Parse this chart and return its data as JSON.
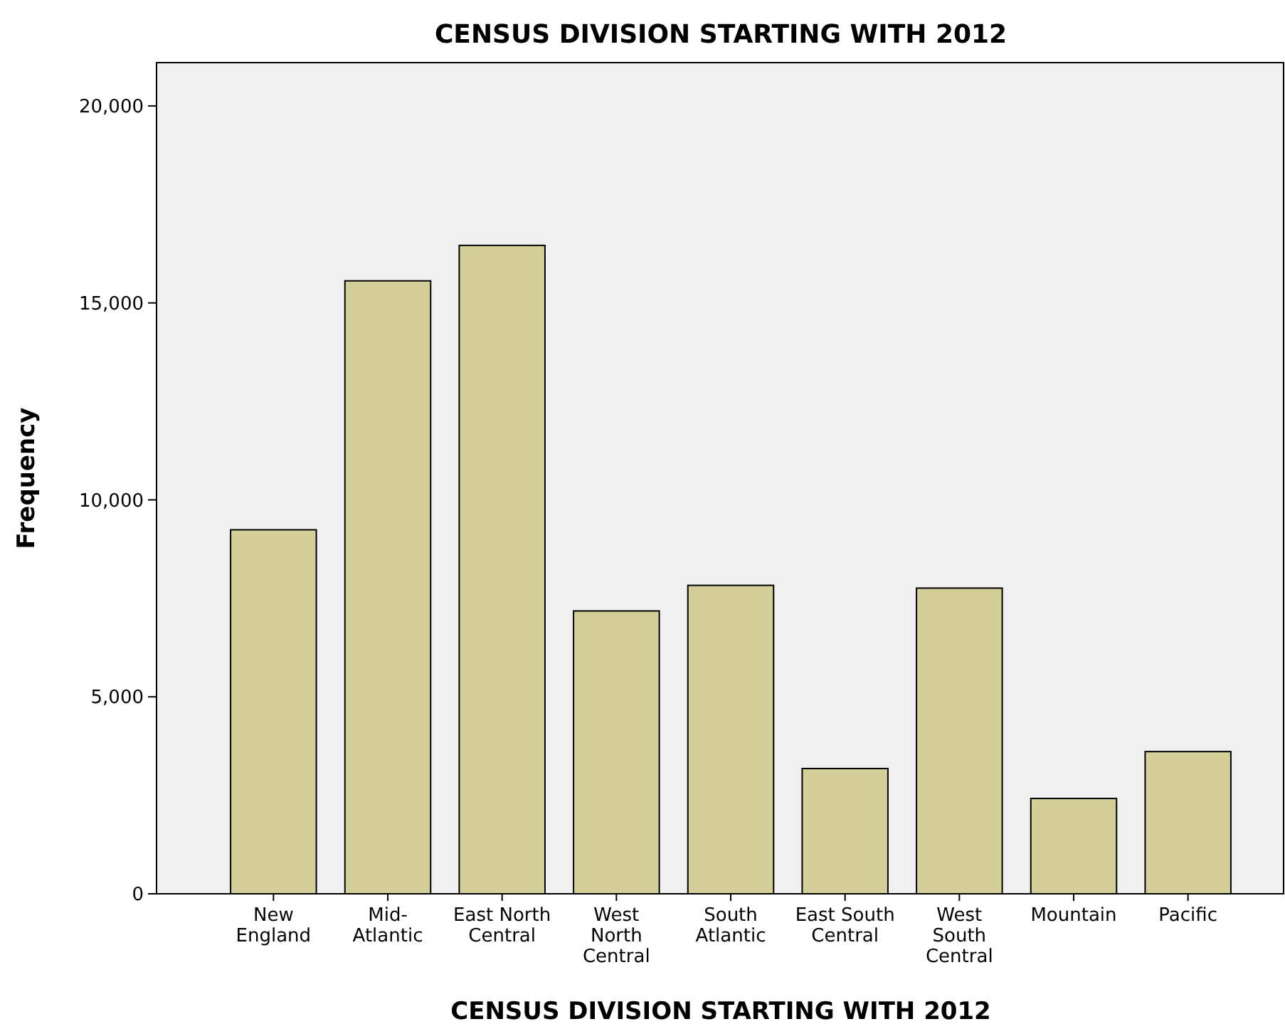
{
  "chart_data": {
    "type": "bar",
    "title": "CENSUS DIVISION STARTING WITH 2012",
    "xlabel": "CENSUS DIVISION STARTING WITH 2012",
    "ylabel": "Frequency",
    "categories": [
      "New\nEngland",
      "Mid-\nAtlantic",
      "East North\nCentral",
      "West\nNorth\nCentral",
      "South\nAtlantic",
      "East South\nCentral",
      "West\nSouth\nCentral",
      "Mountain",
      "Pacific"
    ],
    "values": [
      9240,
      15560,
      16460,
      7180,
      7830,
      3180,
      7760,
      2420,
      3610
    ],
    "color": "#d4cf99",
    "ylim": [
      0,
      21100
    ],
    "yticks": [
      {
        "value": 0,
        "label": "0"
      },
      {
        "value": 5000,
        "label": "5,000"
      },
      {
        "value": 10000,
        "label": "10,000"
      },
      {
        "value": 15000,
        "label": "15,000"
      },
      {
        "value": 20000,
        "label": "20,000"
      }
    ],
    "grid": false
  }
}
